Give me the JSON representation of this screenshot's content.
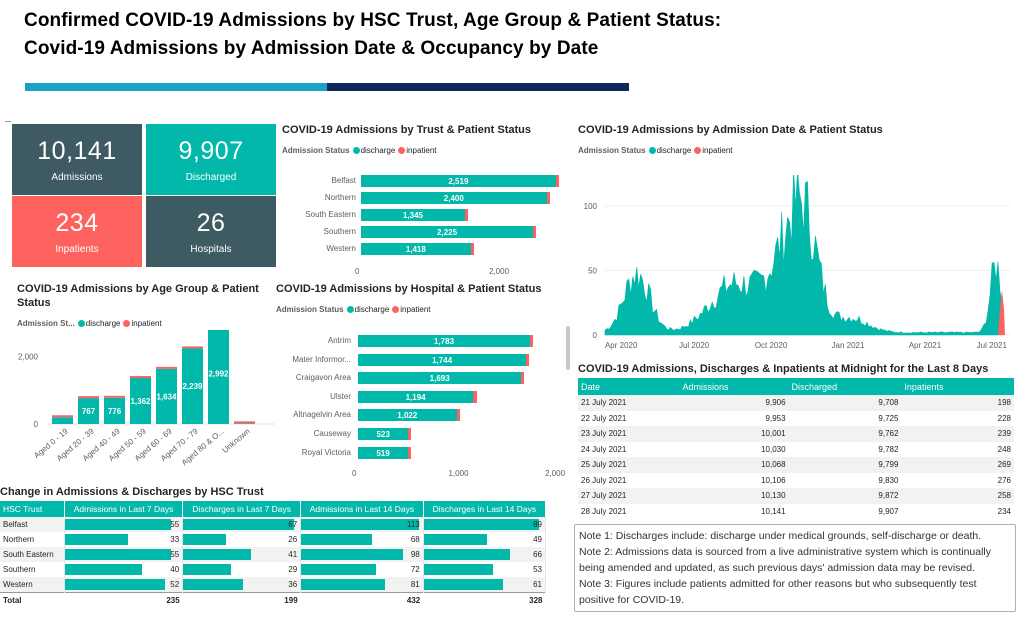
{
  "header": {
    "title_line1": "Confirmed COVID-19 Admissions by HSC Trust, Age Group & Patient Status:",
    "title_line2": "Covid-19 Admissions by Admission Date & Occupancy by Date"
  },
  "colors": {
    "discharge": "#01b8aa",
    "inpatient": "#fd625e",
    "kpi_dark": "#3e5a63",
    "kpi_teal": "#01b8aa",
    "kpi_red": "#fd625e",
    "header_teal": "#1ba0c6",
    "header_navy": "#0b2a5b"
  },
  "kpis": [
    {
      "value": "10,141",
      "label": "Admissions"
    },
    {
      "value": "9,907",
      "label": "Discharged"
    },
    {
      "value": "234",
      "label": "Inpatients"
    },
    {
      "value": "26",
      "label": "Hospitals"
    }
  ],
  "legend": {
    "title": "Admission Status",
    "title_short": "Admission St...",
    "discharge": "discharge",
    "inpatient": "inpatient"
  },
  "trust_chart": {
    "title": "COVID-19 Admissions by Trust & Patient Status",
    "type": "bar",
    "xlim": [
      0,
      3000
    ],
    "ticks": [
      "0",
      "2,000"
    ],
    "rows": [
      {
        "name": "Belfast",
        "discharge": 2519,
        "inpatient": 25,
        "label": "2,519"
      },
      {
        "name": "Northern",
        "discharge": 2400,
        "inpatient": 30,
        "label": "2,400"
      },
      {
        "name": "South Eastern",
        "discharge": 1345,
        "inpatient": 35,
        "label": "1,345"
      },
      {
        "name": "Southern",
        "discharge": 2225,
        "inpatient": 20,
        "label": "2,225"
      },
      {
        "name": "Western",
        "discharge": 1418,
        "inpatient": 40,
        "label": "1,418"
      }
    ]
  },
  "age_chart": {
    "title": "COVID-19 Admissions by Age Group & Patient Status",
    "type": "bar",
    "ylim": [
      0,
      3200
    ],
    "ticks": [
      "0",
      "2,000"
    ],
    "categories": [
      "Aged 0 - 19",
      "Aged 20 - 39",
      "Aged 40 - 49",
      "Aged 50 - 59",
      "Aged 60 - 69",
      "Aged 70 - 79",
      "Aged 80 & O...",
      "Unknown"
    ],
    "values": [
      200,
      767,
      776,
      1362,
      1634,
      2239,
      2992,
      20
    ],
    "labels": [
      "",
      "767",
      "776",
      "1,362",
      "1,634",
      "2,239",
      "2,992",
      ""
    ]
  },
  "hospital_chart": {
    "title": "COVID-19 Admissions by Hospital & Patient Status",
    "type": "bar",
    "xlim": [
      0,
      2000
    ],
    "ticks": [
      "0",
      "1,000",
      "2,000"
    ],
    "rows": [
      {
        "name": "Antrim",
        "discharge": 1783,
        "inpatient": 15,
        "label": "1,783"
      },
      {
        "name": "Mater Informor...",
        "discharge": 1744,
        "inpatient": 15,
        "label": "1,744"
      },
      {
        "name": "Craigavon Area",
        "discharge": 1693,
        "inpatient": 20,
        "label": "1,693"
      },
      {
        "name": "Ulster",
        "discharge": 1194,
        "inpatient": 40,
        "label": "1,194"
      },
      {
        "name": "Altnagelvin Area",
        "discharge": 1022,
        "inpatient": 30,
        "label": "1,022"
      },
      {
        "name": "Causeway",
        "discharge": 523,
        "inpatient": 10,
        "label": "523"
      },
      {
        "name": "Royal Victoria",
        "discharge": 519,
        "inpatient": 10,
        "label": "519"
      }
    ]
  },
  "date_chart": {
    "title": "COVID-19 Admissions by Admission Date & Patient Status",
    "type": "area",
    "ylim": [
      0,
      120
    ],
    "yticks": [
      "0",
      "50",
      "100"
    ],
    "xticks": [
      "Apr 2020",
      "Jul 2020",
      "Oct 2020",
      "Jan 2021",
      "Apr 2021",
      "Jul 2021"
    ]
  },
  "midnight_table": {
    "title": "COVID-19 Admissions, Discharges & Inpatients at Midnight for the Last 8 Days",
    "headers": [
      "Date",
      "Admissions",
      "Discharged",
      "Inpatients"
    ],
    "rows": [
      [
        "21 July 2021",
        "9,906",
        "9,708",
        "198"
      ],
      [
        "22 July 2021",
        "9,953",
        "9,725",
        "228"
      ],
      [
        "23 July 2021",
        "10,001",
        "9,762",
        "239"
      ],
      [
        "24 July 2021",
        "10,030",
        "9,782",
        "248"
      ],
      [
        "25 July 2021",
        "10,068",
        "9,799",
        "269"
      ],
      [
        "26 July 2021",
        "10,106",
        "9,830",
        "276"
      ],
      [
        "27 July 2021",
        "10,130",
        "9,872",
        "258"
      ],
      [
        "28 July 2021",
        "10,141",
        "9,907",
        "234"
      ]
    ]
  },
  "change_table": {
    "title": "Change in Admissions & Discharges by HSC Trust",
    "headers": [
      "HSC Trust",
      "Admissions in Last 7 Days",
      "Discharges in Last 7 Days",
      "Admissions in Last 14 Days",
      "Discharges in Last 14 Days"
    ],
    "rows": [
      [
        "Belfast",
        "55",
        "67",
        "113",
        "89"
      ],
      [
        "Northern",
        "33",
        "26",
        "68",
        "49"
      ],
      [
        "South Eastern",
        "55",
        "41",
        "98",
        "66"
      ],
      [
        "Southern",
        "40",
        "29",
        "72",
        "53"
      ],
      [
        "Western",
        "52",
        "36",
        "81",
        "61"
      ]
    ],
    "total": [
      "Total",
      "235",
      "199",
      "432",
      "328"
    ]
  },
  "notes": {
    "n1_label": "Note 1:",
    "n1": "Discharges include: discharge under medical grounds, self-discharge or death.",
    "n2_label": "Note 2:",
    "n2": "Admissions data is sourced from a live administrative system which is continually being amended and updated, as such previous days' admission data may be revised.",
    "n3_label": "Note 3:",
    "n3": "Figures include patients admitted for other reasons but who subsequently test positive for COVID-19."
  }
}
